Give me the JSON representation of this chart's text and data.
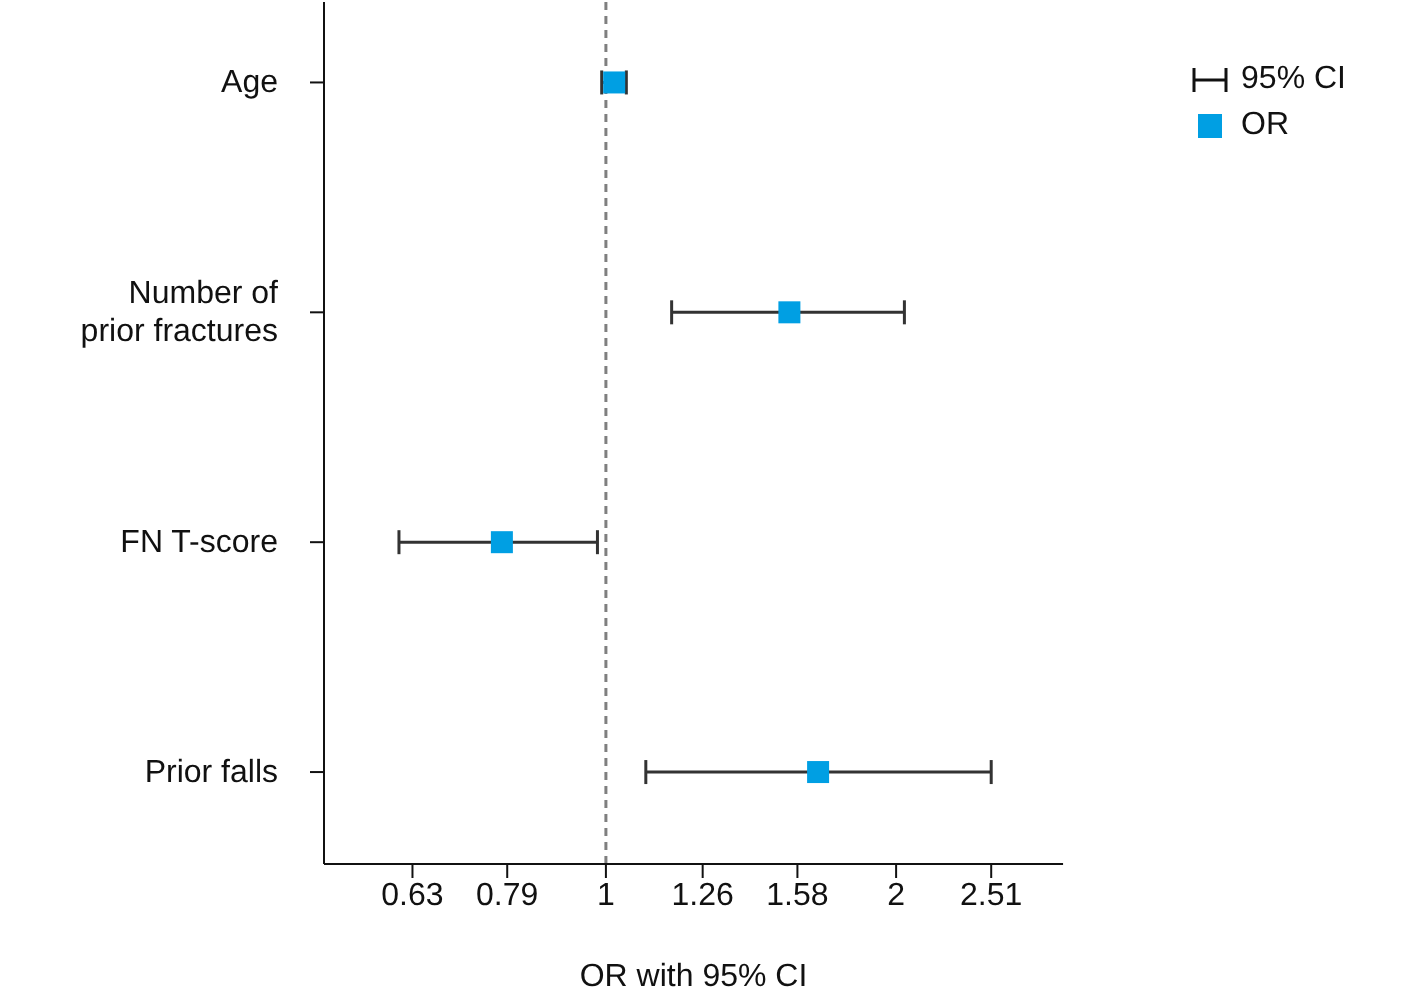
{
  "chart_data": {
    "type": "scatter",
    "orientation": "horizontal",
    "xlabel": "OR with 95% CI",
    "categories": [
      "Age",
      "Number of prior fractures",
      "FN T-score",
      "Prior falls"
    ],
    "series": [
      {
        "name": "OR",
        "color": "#009fe3",
        "values": [
          1.02,
          1.55,
          0.78,
          1.66
        ],
        "errors": [
          [
            0.99,
            1.05
          ],
          [
            1.17,
            2.04
          ],
          [
            0.61,
            0.98
          ],
          [
            1.1,
            2.51
          ]
        ]
      }
    ],
    "annotations": [
      "95% CI"
    ],
    "log": "x",
    "xlim": [
      0.51,
      2.98
    ],
    "xticks": [
      0.63,
      0.79,
      1,
      1.26,
      1.58,
      2,
      2.51
    ],
    "ref_lines": [
      {
        "axis": "x",
        "value": 1,
        "color": "#7f7f7f",
        "line_style": "dashed"
      }
    ],
    "marker": "square",
    "legend": "top right",
    "grid": false
  }
}
